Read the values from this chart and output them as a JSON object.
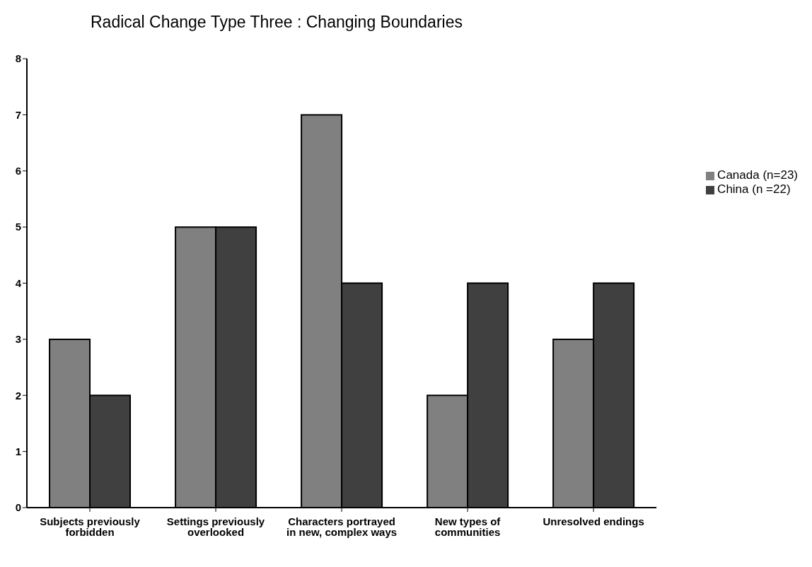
{
  "chart_data": {
    "type": "bar",
    "title": "Radical Change Type Three : Changing Boundaries",
    "categories": [
      "Subjects previously forbidden",
      "Settings previously overlooked",
      "Characters portrayed in new, complex ways",
      "New types of communities",
      "Unresolved endings"
    ],
    "series": [
      {
        "name": "Canada (n=23)",
        "color": "#808080",
        "values": [
          3,
          5,
          7,
          2,
          3
        ]
      },
      {
        "name": "China (n =22)",
        "color": "#404040",
        "values": [
          2,
          5,
          4,
          4,
          4
        ]
      }
    ],
    "ylim": [
      0,
      8
    ],
    "yticks": [
      0,
      1,
      2,
      3,
      4,
      5,
      6,
      7,
      8
    ],
    "grid": false,
    "legend": "right"
  }
}
